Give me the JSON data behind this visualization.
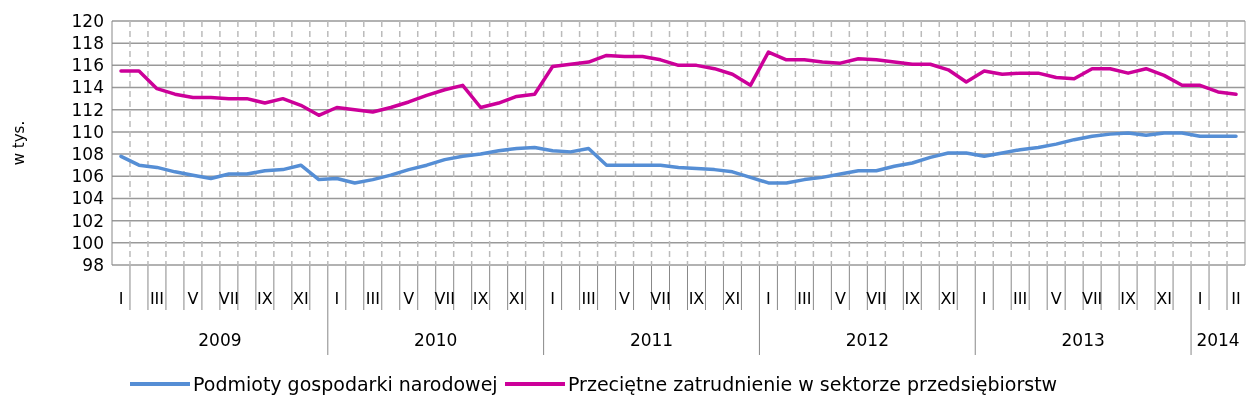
{
  "chart_data": {
    "type": "line",
    "ylabel": "w tys.",
    "categories": [
      "I",
      null,
      "III",
      null,
      "V",
      null,
      "VII",
      null,
      "IX",
      null,
      "XI",
      null,
      "I",
      null,
      "III",
      null,
      "V",
      null,
      "VII",
      null,
      "IX",
      null,
      "XI",
      null,
      "I",
      null,
      "III",
      null,
      "V",
      null,
      "VII",
      null,
      "IX",
      null,
      "XI",
      null,
      "I",
      null,
      "III",
      null,
      "V",
      null,
      "VII",
      null,
      "IX",
      null,
      "XI",
      null,
      "I",
      null,
      "III",
      null,
      "V",
      null,
      "VII",
      null,
      "IX",
      null,
      "XI",
      null,
      "I",
      null,
      "II"
    ],
    "annotations": [
      "2009",
      "2010",
      "2011",
      "2012",
      "2013",
      "2014"
    ],
    "series": [
      {
        "name": "Podmioty gospodarki narodowej",
        "color": "#558ed5",
        "values": [
          107.8,
          107.0,
          106.8,
          106.4,
          106.1,
          105.8,
          106.2,
          106.2,
          106.5,
          106.6,
          107.0,
          105.7,
          105.8,
          105.4,
          105.7,
          106.1,
          106.6,
          107.0,
          107.5,
          107.8,
          108.0,
          108.3,
          108.5,
          108.6,
          108.3,
          108.2,
          108.5,
          107.0,
          107.0,
          107.0,
          107.0,
          106.8,
          106.7,
          106.6,
          106.4,
          105.9,
          105.4,
          105.4,
          105.7,
          105.9,
          106.2,
          106.5,
          106.5,
          106.9,
          107.2,
          107.7,
          108.1,
          108.1,
          107.8,
          108.1,
          108.4,
          108.6,
          108.9,
          109.3,
          109.6,
          109.8,
          109.9,
          109.7,
          109.9,
          109.9,
          109.6,
          109.6,
          109.6
        ]
      },
      {
        "name": "Przeciętne zatrudnienie w sektorze przedsiębiorstw",
        "color": "#cc0099",
        "values": [
          115.5,
          115.5,
          113.9,
          113.4,
          113.1,
          113.1,
          113.0,
          113.0,
          112.6,
          113.0,
          112.4,
          111.5,
          112.2,
          112.0,
          111.8,
          112.2,
          112.7,
          113.3,
          113.8,
          114.2,
          112.2,
          112.6,
          113.2,
          113.4,
          115.9,
          116.1,
          116.3,
          116.9,
          116.8,
          116.8,
          116.5,
          116.0,
          116.0,
          115.7,
          115.2,
          114.2,
          117.2,
          116.5,
          116.5,
          116.3,
          116.2,
          116.6,
          116.5,
          116.3,
          116.1,
          116.1,
          115.6,
          114.5,
          115.5,
          115.2,
          115.3,
          115.3,
          114.9,
          114.8,
          115.7,
          115.7,
          115.3,
          115.7,
          115.1,
          114.2,
          114.2,
          113.6,
          113.4
        ]
      }
    ],
    "ylim": [
      98,
      120
    ],
    "yticks": [
      98,
      100,
      102,
      104,
      106,
      108,
      110,
      112,
      114,
      116,
      118,
      120
    ],
    "grid": true,
    "legend": "bottom",
    "marker": "none",
    "line_style": "solid"
  }
}
